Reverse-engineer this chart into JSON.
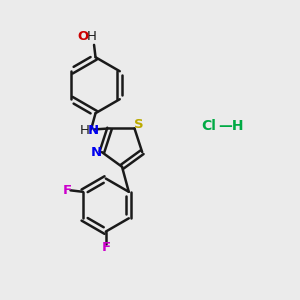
{
  "background_color": "#ebebeb",
  "bond_color": "#1a1a1a",
  "bond_width": 1.8,
  "figsize": [
    3.0,
    3.0
  ],
  "dpi": 100,
  "atoms": {
    "O": {
      "color": "#cc0000",
      "fontsize": 9.5
    },
    "N": {
      "color": "#0000ee",
      "fontsize": 9.5
    },
    "S": {
      "color": "#bbaa00",
      "fontsize": 9.5
    },
    "F": {
      "color": "#cc00cc",
      "fontsize": 9.5
    },
    "Cl": {
      "color": "#00aa44",
      "fontsize": 9.5
    },
    "H": {
      "color": "#1a1a1a",
      "fontsize": 9.5
    }
  },
  "xlim": [
    0,
    10
  ],
  "ylim": [
    0,
    10
  ]
}
